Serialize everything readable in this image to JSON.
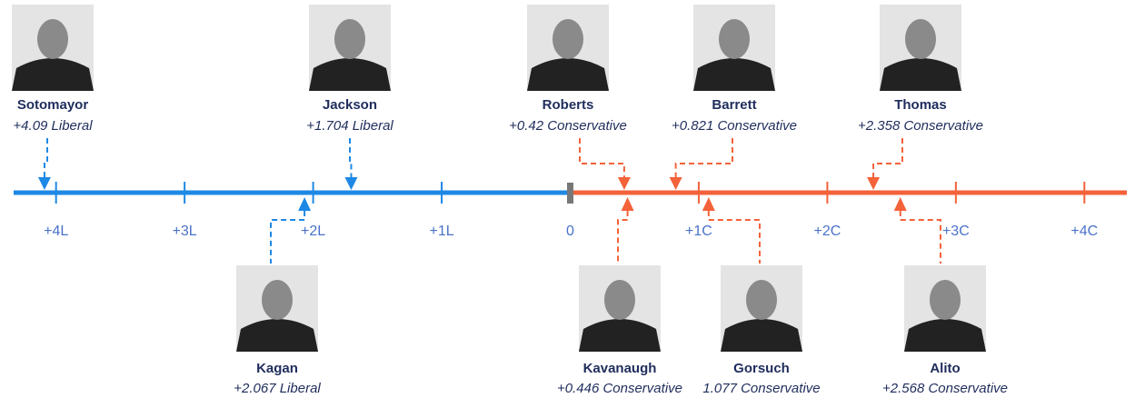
{
  "chart_data": {
    "type": "number-line",
    "categories": [
      "Sotomayor",
      "Kagan",
      "Jackson",
      "Roberts",
      "Kavanaugh",
      "Barrett",
      "Gorsuch",
      "Thomas",
      "Alito"
    ],
    "values": [
      -4.09,
      -2.067,
      -1.704,
      0.42,
      0.446,
      0.821,
      1.077,
      2.358,
      2.568
    ],
    "value_labels": [
      "+4.09 Liberal",
      "+2.067 Liberal",
      "+1.704 Liberal",
      "+0.42 Conservative",
      "+0.446 Conservative",
      "+0.821 Conservative",
      "1.077 Conservative",
      "+2.358 Conservative",
      "+2.568 Conservative"
    ],
    "xlim": [
      -4.33,
      4.33
    ],
    "xticks": [
      {
        "value": -4,
        "label": "+4L"
      },
      {
        "value": -3,
        "label": "+3L"
      },
      {
        "value": -2,
        "label": "+2L"
      },
      {
        "value": -1,
        "label": "+1L"
      },
      0,
      {
        "value": 1,
        "label": "+1C"
      },
      {
        "value": 2,
        "label": "+2C"
      },
      {
        "value": 3,
        "label": "+3C"
      },
      {
        "value": 4,
        "label": "+4C"
      }
    ],
    "liberal_color": "#1e88e5",
    "conservative_color": "#f4623a",
    "center_color": "#777777"
  }
}
